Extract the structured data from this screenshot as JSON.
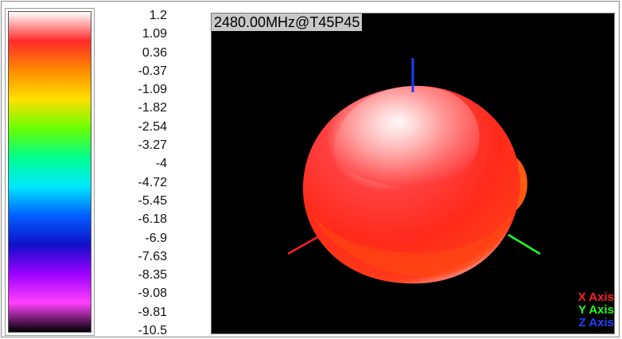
{
  "chart_data": {
    "type": "heatmap",
    "title": "2480.00MHz@T45P45",
    "colorbar": {
      "ticks": [
        "1.2",
        "1.09",
        "0.36",
        "-0.37",
        "-1.09",
        "-1.82",
        "-2.54",
        "-3.27",
        "-4",
        "-4.72",
        "-5.45",
        "-6.18",
        "-6.9",
        "-7.63",
        "-8.35",
        "-9.08",
        "-9.81",
        "-10.5"
      ],
      "range": [
        -10.5,
        1.2
      ],
      "colors": [
        "#ffffff",
        "#ff2a2a",
        "#ff8a00",
        "#ffe000",
        "#6aff00",
        "#00ff8c",
        "#00e8ff",
        "#0060ff",
        "#1010c8",
        "#9a00ff",
        "#ff40ff",
        "#000000"
      ]
    },
    "axes_legend": [
      {
        "label": "X Axis",
        "color": "#ff2020"
      },
      {
        "label": "Y Axis",
        "color": "#20ff20"
      },
      {
        "label": "Z Axis",
        "color": "#2040ff"
      }
    ]
  }
}
